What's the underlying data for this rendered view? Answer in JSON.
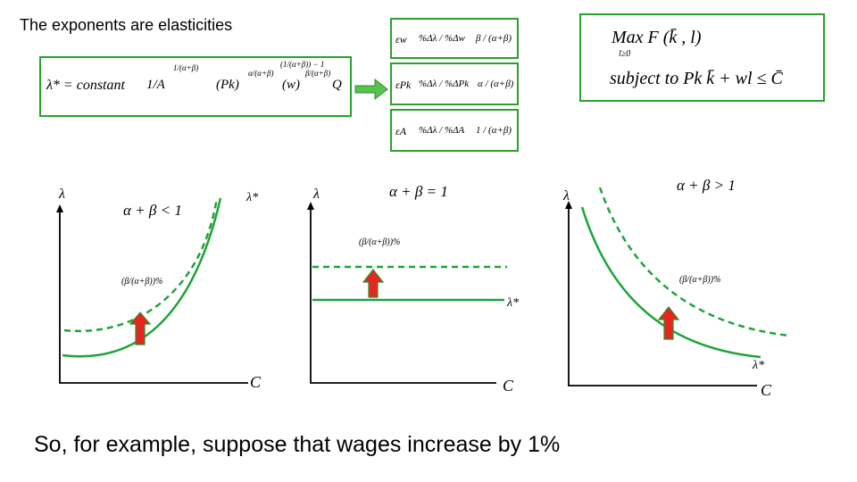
{
  "title": "The exponents are elasticities",
  "caption": "So, for example, suppose that wages increase by 1%",
  "formula_main": {
    "lhs": "λ* = constant",
    "factor_a": "1/A",
    "exp_a": "1/(α+β)",
    "pk": "(Pk)",
    "exp_pk": "α/(α+β)",
    "w": "(w)",
    "exp_w": "β/(α+β)",
    "q": "Q",
    "exp_q": "(1/(α+β)) − 1"
  },
  "elasticities": [
    {
      "lhs": "εw",
      "mid": "%Δλ / %Δw",
      "rhs": "β / (α+β)"
    },
    {
      "lhs": "εPk",
      "mid": "%Δλ / %ΔPk",
      "rhs": "α / (α+β)"
    },
    {
      "lhs": "εA",
      "mid": "%Δλ / %ΔA",
      "rhs": "1 / (α+β)"
    }
  ],
  "problem": {
    "line1": "Max F (k̄ , l)",
    "under": "l≥0",
    "line2": "subject to  Pk k̄ + wl ≤ C̄"
  },
  "graphs": [
    {
      "condition": "α + β < 1",
      "y_label": "λ",
      "x_label": "C",
      "curve_label": "λ*",
      "shift_label": "(β/(α+β))%"
    },
    {
      "condition": "α + β = 1",
      "y_label": "λ",
      "x_label": "C",
      "curve_label": "λ*",
      "shift_label": "(β/(α+β))%"
    },
    {
      "condition": "α + β > 1",
      "y_label": "λ",
      "x_label": "C",
      "curve_label": "λ*",
      "shift_label": "(β/(α+β))%"
    }
  ],
  "colors": {
    "curve": "#1fa33a",
    "box_border": "#2ca02c",
    "arrow_fill": "#e8261f",
    "arrow_stroke": "#2a8f2a",
    "right_arrow": "#58c24f"
  }
}
